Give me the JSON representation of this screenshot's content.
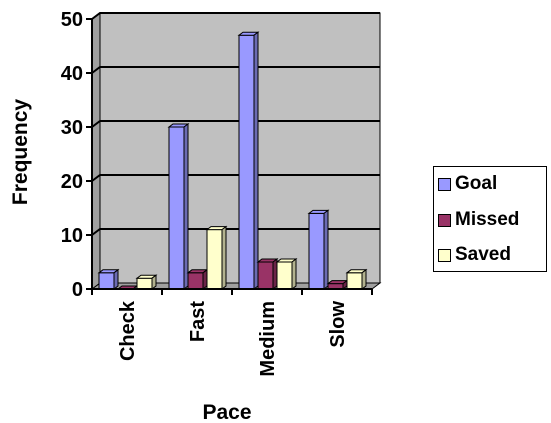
{
  "chart_data": {
    "type": "bar",
    "title": "",
    "xlabel": "Pace",
    "ylabel": "Frequency",
    "categories": [
      "Check",
      "Fast",
      "Medium",
      "Slow"
    ],
    "ylim": [
      0,
      50
    ],
    "yticks": [
      0,
      10,
      20,
      30,
      40,
      50
    ],
    "grid": true,
    "legend_position": "right",
    "series": [
      {
        "name": "Goal",
        "color": "#9999ff",
        "values": [
          3,
          30,
          47,
          14
        ]
      },
      {
        "name": "Missed",
        "color": "#993366",
        "values": [
          0,
          3,
          5,
          1
        ]
      },
      {
        "name": "Saved",
        "color": "#ffffcc",
        "values": [
          2,
          11,
          5,
          3
        ]
      }
    ],
    "plot_background": "#c0c0c0"
  }
}
